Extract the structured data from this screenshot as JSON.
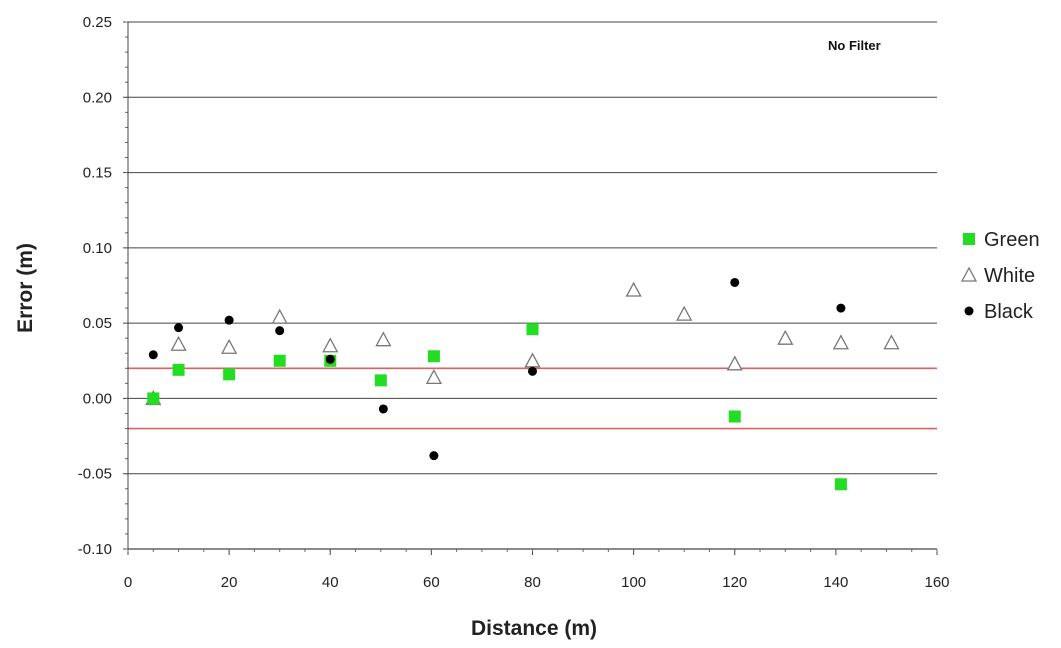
{
  "chart_data": {
    "type": "scatter",
    "title": "",
    "annotation": "No Filter",
    "xlabel": "Distance (m)",
    "ylabel": "Error (m)",
    "xlim": [
      0,
      160
    ],
    "ylim": [
      -0.1,
      0.25
    ],
    "xticks": [
      "0",
      "20",
      "40",
      "60",
      "80",
      "100",
      "120",
      "140",
      "160"
    ],
    "yticks": [
      "-0.10",
      "-0.05",
      "0.00",
      "0.05",
      "0.10",
      "0.15",
      "0.20",
      "0.25"
    ],
    "grid": "horizontal",
    "legend_position": "right",
    "reference_lines": [
      {
        "y": 0.02,
        "color": "#e06060"
      },
      {
        "y": -0.02,
        "color": "#e06060"
      }
    ],
    "series": [
      {
        "name": "Green",
        "marker": "square",
        "color": "#22dd22",
        "points": [
          [
            5,
            0.0
          ],
          [
            10,
            0.019
          ],
          [
            20,
            0.016
          ],
          [
            30,
            0.025
          ],
          [
            40,
            0.025
          ],
          [
            50,
            0.012
          ],
          [
            60.5,
            0.028
          ],
          [
            80,
            0.046
          ],
          [
            120,
            -0.012
          ],
          [
            141,
            -0.057
          ]
        ]
      },
      {
        "name": "White",
        "marker": "triangle",
        "color": "#777777",
        "points": [
          [
            5,
            0.0
          ],
          [
            10,
            0.036
          ],
          [
            20,
            0.034
          ],
          [
            30,
            0.054
          ],
          [
            40,
            0.035
          ],
          [
            50.5,
            0.039
          ],
          [
            60.5,
            0.014
          ],
          [
            80,
            0.025
          ],
          [
            100,
            0.072
          ],
          [
            110,
            0.056
          ],
          [
            120,
            0.023
          ],
          [
            130,
            0.04
          ],
          [
            141,
            0.037
          ],
          [
            151,
            0.037
          ]
        ]
      },
      {
        "name": "Black",
        "marker": "circle",
        "color": "#000000",
        "points": [
          [
            5,
            0.029
          ],
          [
            10,
            0.047
          ],
          [
            20,
            0.052
          ],
          [
            30,
            0.045
          ],
          [
            40,
            0.026
          ],
          [
            50.5,
            -0.007
          ],
          [
            60.5,
            -0.038
          ],
          [
            80,
            0.018
          ],
          [
            120,
            0.077
          ],
          [
            141,
            0.06
          ]
        ]
      }
    ]
  }
}
